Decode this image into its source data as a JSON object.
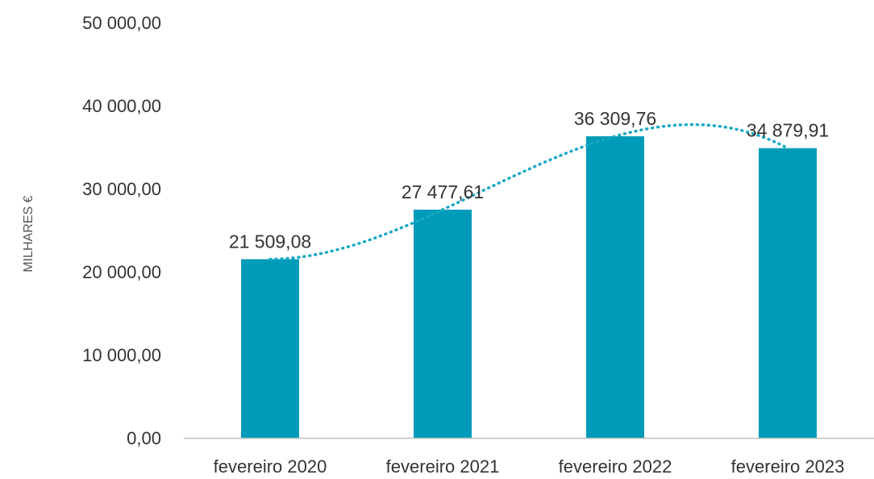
{
  "chart_data": {
    "type": "bar",
    "title": "",
    "xlabel": "",
    "ylabel": "MILHARES €",
    "categories": [
      "fevereiro  2020",
      "fevereiro  2021",
      "fevereiro  2022",
      "fevereiro  2023"
    ],
    "values": [
      21509.08,
      27477.61,
      36309.76,
      34879.91
    ],
    "value_labels": [
      "21 509,08",
      "27 477,61",
      "36 309,76",
      "34 879,91"
    ],
    "ylim": [
      0,
      50000
    ],
    "yticks": [
      0,
      10000,
      20000,
      30000,
      40000,
      50000
    ],
    "ytick_labels": [
      "0,00",
      "10 000,00",
      "20 000,00",
      "30 000,00",
      "40 000,00",
      "50 000,00"
    ],
    "grid": false,
    "legend": "none",
    "trendline": {
      "type": "polynomial",
      "style": "dotted"
    },
    "colors": {
      "bar": "#009bb8",
      "trendline": "#1aa9c4",
      "axis": "#bfbfbf"
    }
  }
}
